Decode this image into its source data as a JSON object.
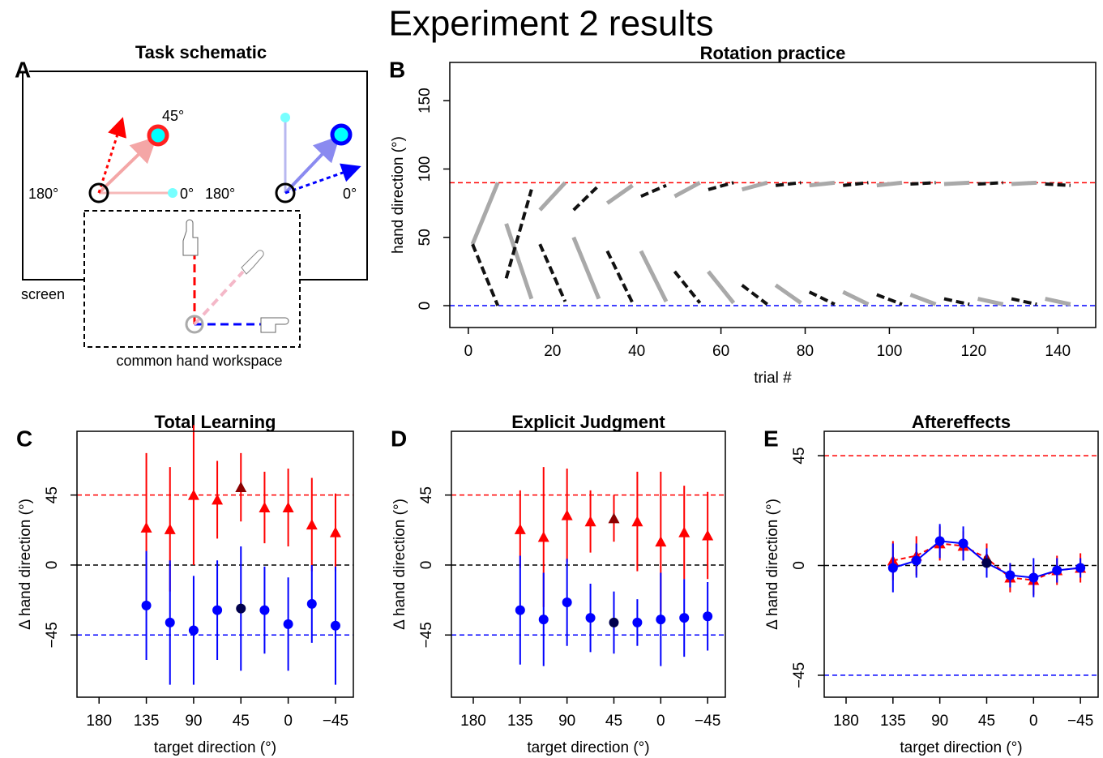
{
  "title": "Experiment 2 results",
  "schematic": {
    "panel": "A",
    "title": "Task schematic",
    "left_labels": {
      "angle": "45°",
      "left": "180°",
      "right": "0°"
    },
    "right_labels": {
      "left": "180°",
      "right": "0°"
    },
    "screen": "screen",
    "workspace": "common hand workspace"
  },
  "chart_data": [
    {
      "type": "line",
      "panel": "B",
      "title": "Rotation practice",
      "x_label": "trial #",
      "y_label": "hand direction (°)",
      "x": [
        1,
        7,
        8,
        9,
        15,
        16,
        17,
        23,
        24,
        25,
        31,
        32,
        33,
        39,
        40,
        41,
        47,
        48,
        49,
        55,
        56,
        57,
        63,
        64,
        65,
        71,
        72,
        73,
        79,
        80,
        81,
        87,
        88,
        89,
        95,
        96,
        97,
        103,
        104,
        105,
        111,
        112,
        113,
        119,
        120,
        121,
        127,
        128,
        129,
        135,
        136,
        137,
        143,
        144
      ],
      "series": [
        {
          "color": "#a9a9a9",
          "values": [
            45,
            90,
            null,
            60,
            5,
            null,
            70,
            90,
            null,
            50,
            5,
            null,
            75,
            88,
            null,
            40,
            3,
            null,
            80,
            90,
            null,
            25,
            2,
            null,
            85,
            90,
            null,
            15,
            2,
            null,
            88,
            90,
            null,
            10,
            1,
            null,
            88,
            90,
            null,
            8,
            1,
            null,
            89,
            90,
            null,
            5,
            1,
            null,
            89,
            90,
            null,
            5,
            1,
            null
          ]
        },
        {
          "color": "#111111",
          "values": [
            45,
            0,
            null,
            20,
            85,
            null,
            45,
            3,
            null,
            70,
            88,
            null,
            40,
            2,
            null,
            80,
            88,
            null,
            25,
            2,
            null,
            85,
            90,
            null,
            15,
            1,
            null,
            88,
            90,
            null,
            10,
            1,
            null,
            88,
            90,
            null,
            8,
            1,
            null,
            89,
            90,
            null,
            5,
            1,
            null,
            89,
            90,
            null,
            5,
            1,
            null,
            89,
            88,
            null
          ]
        }
      ],
      "xlim": [
        -4.4,
        149
      ],
      "ylim": [
        -16,
        178
      ],
      "xticks": [
        0,
        20,
        40,
        60,
        80,
        100,
        120,
        140
      ],
      "yticks": [
        0,
        50,
        100,
        150
      ],
      "hlines": [
        {
          "value": 90,
          "color": "#ff0000"
        },
        {
          "value": 0,
          "color": "#0000ff"
        }
      ]
    },
    {
      "type": "scatter",
      "panel": "C",
      "title": "Total Learning",
      "x_label": "target direction (°)",
      "y_label": "Δ hand direction (°)",
      "x": [
        135,
        112.5,
        90,
        67.5,
        45,
        22.5,
        0,
        -22.5,
        -45
      ],
      "series": [
        {
          "marker": "triangle",
          "color": "#ff0000",
          "point_colors": [
            "#ff0000",
            "#ff0000",
            "#ff0000",
            "#ff0000",
            "#8b0000",
            "#ff0000",
            "#ff0000",
            "#ff0000",
            "#ff0000"
          ],
          "values": [
            24,
            23,
            45,
            42,
            50,
            37,
            37,
            26,
            21
          ],
          "errors": [
            48,
            40,
            45,
            25,
            22,
            23,
            25,
            30,
            25
          ]
        },
        {
          "marker": "circle",
          "color": "#0000ff",
          "point_colors": [
            "#0000ff",
            "#0000ff",
            "#0000ff",
            "#0000ff",
            "#00004d",
            "#0000ff",
            "#0000ff",
            "#0000ff",
            "#0000ff"
          ],
          "values": [
            -26,
            -37,
            -42,
            -29,
            -28,
            -29,
            -38,
            -25,
            -39
          ],
          "errors": [
            35,
            40,
            35,
            32,
            40,
            28,
            30,
            25,
            38
          ]
        }
      ],
      "xlim": [
        201,
        -62
      ],
      "ylim": [
        -85,
        86
      ],
      "xticks": [
        180,
        135,
        90,
        45,
        0,
        {
          "value": -45,
          "label": "−45"
        }
      ],
      "yticks": [
        {
          "value": -45,
          "label": "−45"
        },
        0,
        45
      ],
      "hlines": [
        {
          "value": 45,
          "color": "#ff0000"
        },
        {
          "value": 0,
          "color": "#000000"
        },
        {
          "value": -45,
          "color": "#0000ff"
        }
      ]
    },
    {
      "type": "scatter",
      "panel": "D",
      "title": "Explicit Judgment",
      "x_label": "target direction (°)",
      "y_label": "Δ hand direction (°)",
      "x": [
        135,
        112.5,
        90,
        67.5,
        45,
        22.5,
        0,
        -22.5,
        -45
      ],
      "series": [
        {
          "marker": "triangle",
          "color": "#ff0000",
          "point_colors": [
            "#ff0000",
            "#ff0000",
            "#ff0000",
            "#ff0000",
            "#8b0000",
            "#ff0000",
            "#ff0000",
            "#ff0000",
            "#ff0000"
          ],
          "values": [
            23,
            18,
            32,
            28,
            30,
            28,
            15,
            21,
            19
          ],
          "errors": [
            25,
            45,
            30,
            20,
            15,
            32,
            45,
            30,
            28
          ]
        },
        {
          "marker": "circle",
          "color": "#0000ff",
          "point_colors": [
            "#0000ff",
            "#0000ff",
            "#0000ff",
            "#0000ff",
            "#00004d",
            "#0000ff",
            "#0000ff",
            "#0000ff",
            "#0000ff"
          ],
          "values": [
            -29,
            -35,
            -24,
            -34,
            -37,
            -37,
            -35,
            -34,
            -33
          ],
          "errors": [
            35,
            30,
            28,
            22,
            20,
            15,
            30,
            25,
            22
          ]
        }
      ],
      "xlim": [
        201,
        -62
      ],
      "ylim": [
        -85,
        86
      ],
      "xticks": [
        180,
        135,
        90,
        45,
        0,
        {
          "value": -45,
          "label": "−45"
        }
      ],
      "yticks": [
        {
          "value": -45,
          "label": "−45"
        },
        0,
        45
      ],
      "hlines": [
        {
          "value": 45,
          "color": "#ff0000"
        },
        {
          "value": 0,
          "color": "#000000"
        },
        {
          "value": -45,
          "color": "#0000ff"
        }
      ]
    },
    {
      "type": "scatter",
      "panel": "E",
      "title": "Aftereffects",
      "x_label": "target direction (°)",
      "y_label": "Δ hand direction (°)",
      "x": [
        135,
        112.5,
        90,
        67.5,
        45,
        22.5,
        0,
        -22.5,
        -45
      ],
      "smooth": true,
      "series": [
        {
          "marker": "triangle",
          "color": "#ff0000",
          "line_style": "dashed",
          "point_colors": [
            "#ff0000",
            "#ff0000",
            "#ff0000",
            "#ff0000",
            "#8b0000",
            "#ff0000",
            "#ff0000",
            "#ff0000",
            "#ff0000"
          ],
          "values": [
            2,
            4,
            9,
            8,
            3,
            -5,
            -6,
            -2,
            -1
          ],
          "errors": [
            8,
            8,
            7,
            6,
            6,
            6,
            6,
            6,
            6
          ]
        },
        {
          "marker": "circle",
          "color": "#0000ff",
          "line_style": "solid",
          "point_colors": [
            "#0000ff",
            "#0000ff",
            "#0000ff",
            "#0000ff",
            "#00004d",
            "#0000ff",
            "#0000ff",
            "#0000ff",
            "#0000ff"
          ],
          "values": [
            -1,
            2,
            10,
            9,
            1,
            -4,
            -5,
            -2,
            -1
          ],
          "errors": [
            10,
            7,
            7,
            7,
            6,
            5,
            8,
            5,
            4
          ]
        }
      ],
      "xlim": [
        201,
        -62
      ],
      "ylim": [
        -54,
        55
      ],
      "xticks": [
        180,
        135,
        90,
        45,
        0,
        {
          "value": -45,
          "label": "−45"
        }
      ],
      "yticks": [
        {
          "value": -45,
          "label": "−45"
        },
        0,
        45
      ],
      "hlines": [
        {
          "value": 45,
          "color": "#ff0000"
        },
        {
          "value": 0,
          "color": "#000000"
        },
        {
          "value": -45,
          "color": "#0000ff"
        }
      ]
    }
  ]
}
